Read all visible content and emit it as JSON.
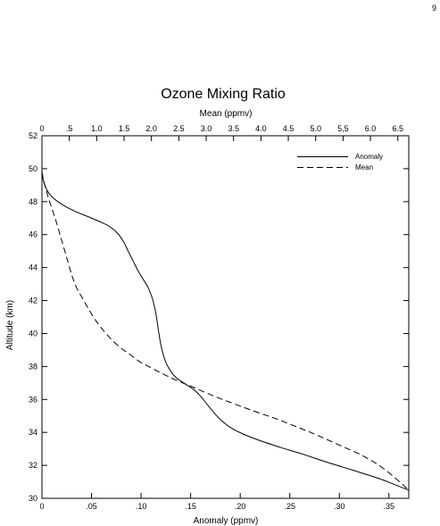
{
  "page": {
    "number": "9"
  },
  "chart_data": {
    "type": "line",
    "title": "Ozone Mixing Ratio",
    "xlabel": "Anomaly (ppmv)",
    "x2label": "Mean (ppmv)",
    "ylabel": "Altitude (km)",
    "xlim": [
      0,
      0.37
    ],
    "x2lim": [
      0,
      6.7
    ],
    "ylim": [
      30,
      52
    ],
    "x_ticks": [
      {
        "value": 0,
        "label": "0"
      },
      {
        "value": 0.05,
        "label": ".05"
      },
      {
        "value": 0.1,
        "label": ".10"
      },
      {
        "value": 0.15,
        "label": ".15"
      },
      {
        "value": 0.2,
        "label": ".20"
      },
      {
        "value": 0.25,
        "label": ".25"
      },
      {
        "value": 0.3,
        "label": ".30"
      },
      {
        "value": 0.35,
        "label": ".35"
      }
    ],
    "x2_ticks": [
      {
        "value": 0,
        "label": "0"
      },
      {
        "value": 0.5,
        "label": ".5"
      },
      {
        "value": 1.0,
        "label": "1.0"
      },
      {
        "value": 1.5,
        "label": "1.5"
      },
      {
        "value": 2.0,
        "label": "2.0"
      },
      {
        "value": 2.5,
        "label": "2.5"
      },
      {
        "value": 3.0,
        "label": "3.0"
      },
      {
        "value": 3.5,
        "label": "3.5"
      },
      {
        "value": 4.0,
        "label": "4.0"
      },
      {
        "value": 4.5,
        "label": "4.5"
      },
      {
        "value": 5.0,
        "label": "5.0"
      },
      {
        "value": 5.5,
        "label": "5,5"
      },
      {
        "value": 6.0,
        "label": "6.0"
      },
      {
        "value": 6.5,
        "label": "6.5"
      }
    ],
    "y_ticks": [
      {
        "value": 30,
        "label": "30"
      },
      {
        "value": 32,
        "label": "32"
      },
      {
        "value": 34,
        "label": "34"
      },
      {
        "value": 36,
        "label": "36"
      },
      {
        "value": 38,
        "label": "38"
      },
      {
        "value": 40,
        "label": "40"
      },
      {
        "value": 42,
        "label": "42"
      },
      {
        "value": 44,
        "label": "44"
      },
      {
        "value": 46,
        "label": "46"
      },
      {
        "value": 48,
        "label": "48"
      },
      {
        "value": 50,
        "label": "50"
      },
      {
        "value": 52,
        "label": "52"
      }
    ],
    "grid": false,
    "legend": "top-right",
    "series": [
      {
        "name": "Anomaly",
        "style": "solid",
        "axis": "bottom",
        "x": [
          0.0,
          0.001,
          0.003,
          0.006,
          0.01,
          0.016,
          0.024,
          0.034,
          0.046,
          0.058,
          0.068,
          0.076,
          0.082,
          0.087,
          0.092,
          0.097,
          0.102,
          0.107,
          0.111,
          0.114,
          0.116,
          0.118,
          0.12,
          0.123,
          0.127,
          0.134,
          0.143,
          0.153,
          0.16,
          0.168,
          0.178,
          0.19,
          0.203,
          0.22,
          0.24,
          0.262,
          0.287,
          0.314,
          0.34,
          0.357,
          0.37
        ],
        "y": [
          49.8,
          49.4,
          49.0,
          48.6,
          48.3,
          48.0,
          47.7,
          47.4,
          47.1,
          46.8,
          46.5,
          46.1,
          45.6,
          45.0,
          44.4,
          43.8,
          43.3,
          42.8,
          42.2,
          41.5,
          40.8,
          40.0,
          39.3,
          38.6,
          38.0,
          37.4,
          37.0,
          36.6,
          36.2,
          35.6,
          34.9,
          34.3,
          33.9,
          33.5,
          33.1,
          32.7,
          32.2,
          31.7,
          31.2,
          30.8,
          30.5
        ]
      },
      {
        "name": "Mean",
        "style": "dashed",
        "axis": "top",
        "x": [
          0.0,
          0.03,
          0.07,
          0.12,
          0.18,
          0.26,
          0.33,
          0.4,
          0.47,
          0.55,
          0.63,
          0.73,
          0.85,
          0.98,
          1.12,
          1.28,
          1.45,
          1.62,
          1.78,
          1.95,
          2.12,
          2.3,
          2.5,
          2.72,
          3.0,
          3.3,
          3.62,
          3.95,
          4.3,
          4.68,
          5.05,
          5.45,
          5.85,
          6.2,
          6.5,
          6.7
        ],
        "y": [
          49.8,
          49.3,
          48.8,
          48.2,
          47.6,
          46.8,
          46.0,
          45.2,
          44.4,
          43.5,
          42.8,
          42.2,
          41.5,
          40.8,
          40.2,
          39.6,
          39.1,
          38.7,
          38.3,
          38.0,
          37.7,
          37.4,
          37.1,
          36.8,
          36.4,
          36.0,
          35.6,
          35.2,
          34.8,
          34.3,
          33.8,
          33.2,
          32.6,
          31.9,
          31.1,
          30.5
        ]
      }
    ]
  }
}
